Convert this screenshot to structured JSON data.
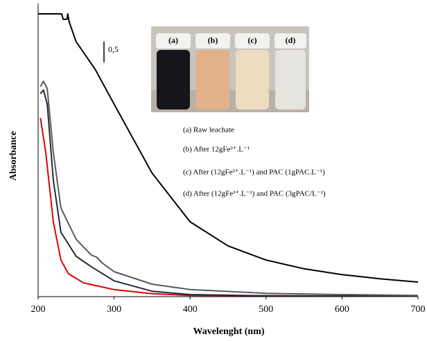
{
  "chart_data": {
    "type": "line",
    "xlabel": "Wavelenght (nm)",
    "ylabel": "Absorbance",
    "xlim": [
      200,
      700
    ],
    "xticks": [
      200,
      300,
      400,
      500,
      600,
      700
    ],
    "ylim": [
      0,
      7.05
    ],
    "scale_bar": {
      "value": 0.5,
      "label": "0,5"
    },
    "photo_labels": [
      "(a)",
      "(b)",
      "(c)",
      "(d)"
    ],
    "series": [
      {
        "name": "(a) Raw leachate",
        "color": "#000000",
        "x": [
          200,
          231,
          233,
          238,
          239,
          241,
          250,
          275,
          300,
          325,
          350,
          400,
          450,
          500,
          550,
          600,
          650,
          700
        ],
        "values": [
          6.8,
          6.8,
          6.67,
          6.67,
          6.8,
          6.6,
          6.13,
          5.47,
          4.63,
          3.8,
          2.97,
          1.8,
          1.22,
          0.88,
          0.67,
          0.53,
          0.43,
          0.35
        ]
      },
      {
        "name": "(b) After 12gFe³⁺.L⁻¹",
        "color": "#595959",
        "x": [
          203,
          207,
          212,
          220,
          230,
          250,
          270,
          277,
          285,
          300,
          350,
          400,
          500,
          600,
          700
        ],
        "values": [
          5.05,
          5.18,
          5.0,
          3.47,
          2.13,
          1.38,
          1.0,
          0.95,
          0.8,
          0.6,
          0.3,
          0.17,
          0.08,
          0.05,
          0.03
        ]
      },
      {
        "name": "(c) After (12gFe³⁺.L⁻¹) and PAC (1gPAC.L⁻¹)",
        "color": "#1f2a3a",
        "x": [
          203,
          207,
          212,
          220,
          230,
          250,
          270,
          300,
          350,
          400,
          500,
          700
        ],
        "values": [
          4.88,
          4.97,
          4.63,
          2.8,
          1.55,
          0.97,
          0.72,
          0.38,
          0.13,
          0.05,
          0.02,
          0.01
        ]
      },
      {
        "name": "(d) After (12gFe³⁺.L⁻¹) and PAC (3gPAC/L⁻¹)",
        "color": "#e00000",
        "x": [
          203,
          210,
          220,
          230,
          240,
          260,
          300,
          350,
          400,
          700
        ],
        "values": [
          4.3,
          3.47,
          1.8,
          0.88,
          0.55,
          0.33,
          0.17,
          0.07,
          0.03,
          0.01
        ]
      }
    ]
  }
}
